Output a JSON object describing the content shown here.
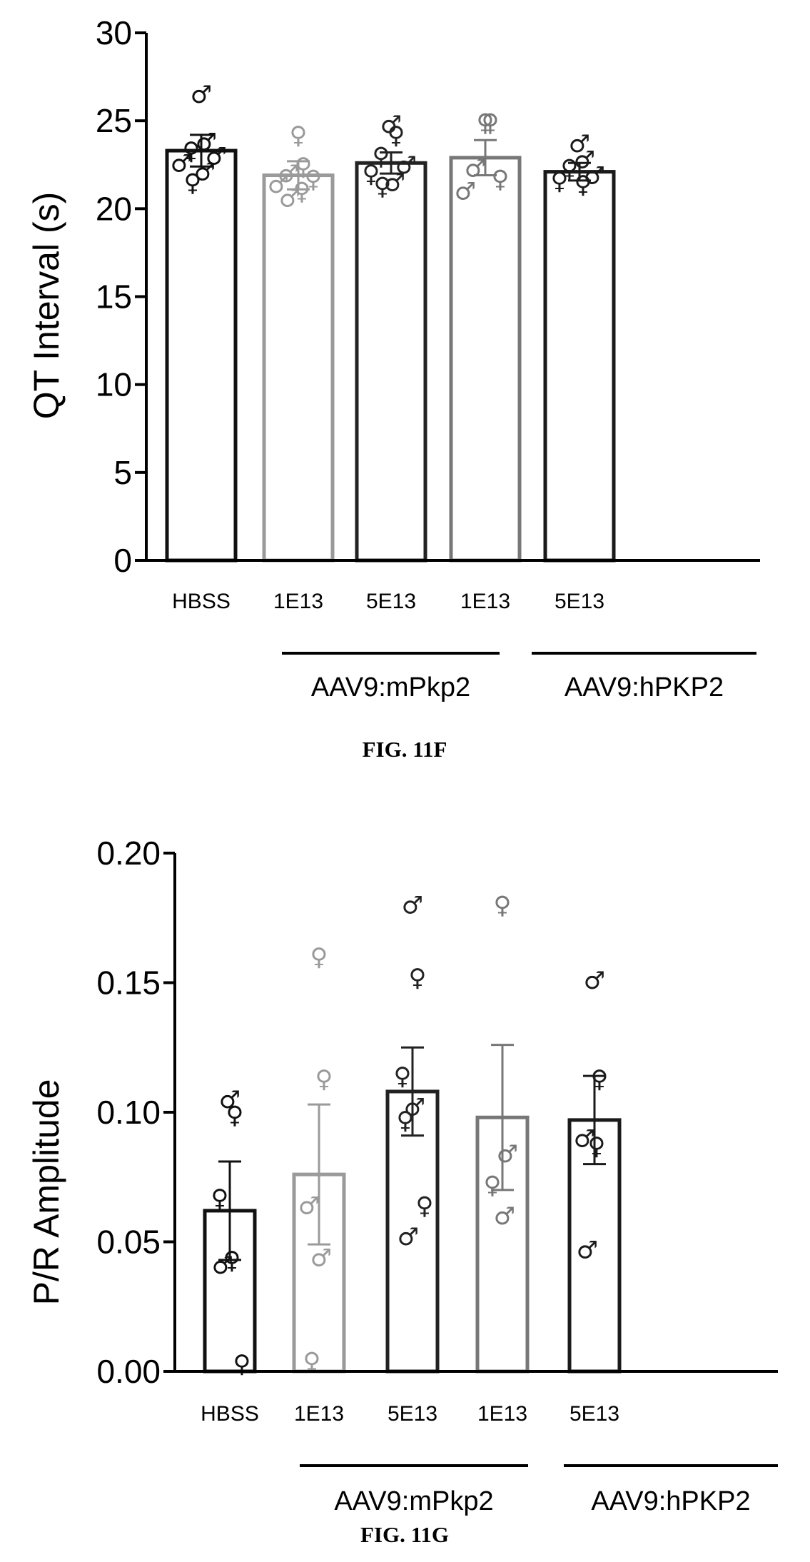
{
  "figures": [
    {
      "caption": "FIG. 11F",
      "chart_data": {
        "type": "bar",
        "title": "",
        "xlabel": "",
        "ylabel": "QT Interval (s)",
        "ylim": [
          0,
          30
        ],
        "yticks": [
          0,
          5,
          10,
          15,
          20,
          25,
          30
        ],
        "ytick_labels": [
          "0",
          "5",
          "10",
          "15",
          "20",
          "25",
          "30"
        ],
        "grid": false,
        "legend": "none",
        "categories": [
          "HBSS",
          "1E13",
          "5E13",
          "1E13",
          "5E13"
        ],
        "groups": [
          {
            "label": "AAV9:mPkp2",
            "categories": [
              1,
              2
            ]
          },
          {
            "label": "AAV9:hPKP2",
            "categories": [
              3,
              4
            ]
          }
        ],
        "series": [
          {
            "values": [
              23.3,
              21.9,
              22.6,
              22.9,
              22.1
            ],
            "error": [
              0.9,
              0.8,
              0.6,
              1.0,
              0.5
            ],
            "colors": [
              "#111111",
              "#9a9a9a",
              "#222222",
              "#777777",
              "#1a1a1a"
            ]
          }
        ],
        "points": [
          [
            {
              "y": 26.5,
              "sex": "♂"
            },
            {
              "y": 23.8,
              "sex": "♂"
            },
            {
              "y": 23.3,
              "sex": "♀"
            },
            {
              "y": 23.0,
              "sex": "♂"
            },
            {
              "y": 22.6,
              "sex": "♂"
            },
            {
              "y": 22.1,
              "sex": "♂"
            },
            {
              "y": 21.5,
              "sex": "♀"
            }
          ],
          [
            {
              "y": 24.2,
              "sex": "♀"
            },
            {
              "y": 22.4,
              "sex": "♀"
            },
            {
              "y": 22.0,
              "sex": "♂"
            },
            {
              "y": 21.7,
              "sex": "♀"
            },
            {
              "y": 21.4,
              "sex": "♂"
            },
            {
              "y": 21.0,
              "sex": "♀"
            },
            {
              "y": 20.6,
              "sex": "♂"
            }
          ],
          [
            {
              "y": 24.8,
              "sex": "♂"
            },
            {
              "y": 24.2,
              "sex": "♀"
            },
            {
              "y": 23.0,
              "sex": "♀"
            },
            {
              "y": 22.5,
              "sex": "♂"
            },
            {
              "y": 22.0,
              "sex": "♀"
            },
            {
              "y": 21.5,
              "sex": "♂"
            },
            {
              "y": 21.3,
              "sex": "♀"
            }
          ],
          [
            {
              "y": 24.9,
              "sex": "♀"
            },
            {
              "y": 24.9,
              "sex": "♀"
            },
            {
              "y": 22.3,
              "sex": "♂"
            },
            {
              "y": 21.7,
              "sex": "♀"
            },
            {
              "y": 21.0,
              "sex": "♂"
            }
          ],
          [
            {
              "y": 23.7,
              "sex": "♂"
            },
            {
              "y": 22.8,
              "sex": "♂"
            },
            {
              "y": 22.3,
              "sex": "♀"
            },
            {
              "y": 21.9,
              "sex": "♂"
            },
            {
              "y": 21.6,
              "sex": "♀"
            },
            {
              "y": 21.4,
              "sex": "♀"
            }
          ]
        ]
      }
    },
    {
      "caption": "FIG. 11G",
      "chart_data": {
        "type": "bar",
        "title": "",
        "xlabel": "",
        "ylabel": "P/R Amplitude",
        "ylim": [
          0,
          0.2
        ],
        "yticks": [
          0,
          0.05,
          0.1,
          0.15,
          0.2
        ],
        "ytick_labels": [
          "0.00",
          "0.05",
          "0.10",
          "0.15",
          "0.20"
        ],
        "grid": false,
        "legend": "none",
        "categories": [
          "HBSS",
          "1E13",
          "5E13",
          "1E13",
          "5E13"
        ],
        "groups": [
          {
            "label": "AAV9:mPkp2",
            "categories": [
              1,
              2
            ]
          },
          {
            "label": "AAV9:hPKP2",
            "categories": [
              3,
              4
            ]
          }
        ],
        "series": [
          {
            "values": [
              0.062,
              0.076,
              0.108,
              0.098,
              0.097
            ],
            "error": [
              0.019,
              0.027,
              0.017,
              0.028,
              0.017
            ],
            "colors": [
              "#111111",
              "#9a9a9a",
              "#222222",
              "#777777",
              "#1a1a1a"
            ]
          }
        ],
        "points": [
          [
            {
              "y": 0.105,
              "sex": "♂"
            },
            {
              "y": 0.099,
              "sex": "♀"
            },
            {
              "y": 0.067,
              "sex": "♀"
            },
            {
              "y": 0.043,
              "sex": "♀"
            },
            {
              "y": 0.041,
              "sex": "♂"
            },
            {
              "y": 0.003,
              "sex": "♀"
            }
          ],
          [
            {
              "y": 0.16,
              "sex": "♀"
            },
            {
              "y": 0.113,
              "sex": "♀"
            },
            {
              "y": 0.064,
              "sex": "♂"
            },
            {
              "y": 0.044,
              "sex": "♂"
            },
            {
              "y": 0.004,
              "sex": "♀"
            }
          ],
          [
            {
              "y": 0.18,
              "sex": "♂"
            },
            {
              "y": 0.152,
              "sex": "♀"
            },
            {
              "y": 0.114,
              "sex": "♀"
            },
            {
              "y": 0.102,
              "sex": "♂"
            },
            {
              "y": 0.097,
              "sex": "♀"
            },
            {
              "y": 0.064,
              "sex": "♀"
            },
            {
              "y": 0.052,
              "sex": "♂"
            }
          ],
          [
            {
              "y": 0.18,
              "sex": "♀"
            },
            {
              "y": 0.084,
              "sex": "♂"
            },
            {
              "y": 0.072,
              "sex": "♀"
            },
            {
              "y": 0.06,
              "sex": "♂"
            }
          ],
          [
            {
              "y": 0.151,
              "sex": "♂"
            },
            {
              "y": 0.113,
              "sex": "♀"
            },
            {
              "y": 0.09,
              "sex": "♂"
            },
            {
              "y": 0.087,
              "sex": "♀"
            },
            {
              "y": 0.047,
              "sex": "♂"
            }
          ]
        ]
      }
    }
  ]
}
